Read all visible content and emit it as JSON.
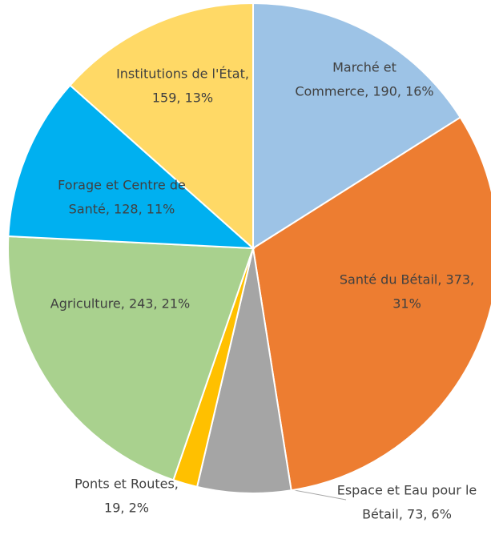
{
  "chart_data": {
    "type": "pie",
    "values": [
      190,
      373,
      73,
      19,
      243,
      128,
      159
    ],
    "colors": [
      "#9dc3e6",
      "#ed7d31",
      "#a5a5a5",
      "#ffc000",
      "#a9d18e",
      "#00b0f0",
      "#ffd966"
    ],
    "value_labels": [
      [
        "Marché et",
        "Commerce, 190, 16%"
      ],
      [
        "Santé du Bétail, 373,",
        "31%"
      ],
      [
        "Espace et Eau pour le",
        "Bétail, 73, 6%"
      ],
      [
        "Ponts et Routes,",
        "19, 2%"
      ],
      [
        "Agriculture, 243, 21%"
      ],
      [
        "Forage et Centre de",
        "Santé, 128, 11%"
      ],
      [
        "Institutions de l'État,",
        "159, 13%"
      ]
    ]
  }
}
